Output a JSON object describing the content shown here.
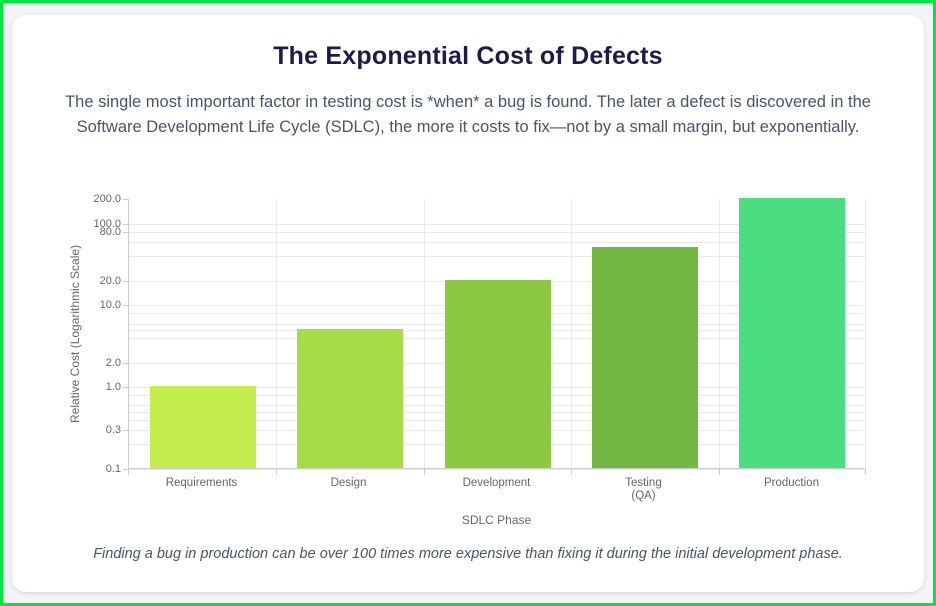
{
  "page": {
    "title": "The Exponential Cost of Defects",
    "subtitle": "The single most important factor in testing cost is *when* a bug is found. The later a defect is discovered in the Software Development Life Cycle (SDLC), the more it costs to fix—not by a small margin, but exponentially.",
    "caption": "Finding a bug in production can be over 100 times more expensive than fixing it during the initial development phase."
  },
  "chart_data": {
    "type": "bar",
    "title": "The Exponential Cost of Defects",
    "categories": [
      "Requirements",
      "Design",
      "Development",
      "Testing\n(QA)",
      "Production"
    ],
    "values": [
      1,
      5,
      20,
      50,
      200
    ],
    "bar_colors": [
      "#c3ee4d",
      "#a8dc46",
      "#8cc841",
      "#74b843",
      "#4ade80"
    ],
    "xlabel": "SDLC Phase",
    "ylabel": "Relative Cost (Logarithmic Scale)",
    "yscale": "log",
    "ylim": [
      0.1,
      200
    ],
    "yticks": [
      {
        "v": 200,
        "label": "200.0"
      },
      {
        "v": 100,
        "label": "100.0"
      },
      {
        "v": 80,
        "label": "80.0"
      },
      {
        "v": 60
      },
      {
        "v": 40
      },
      {
        "v": 20,
        "label": "20.0"
      },
      {
        "v": 10,
        "label": "10.0"
      },
      {
        "v": 8
      },
      {
        "v": 6
      },
      {
        "v": 5
      },
      {
        "v": 4
      },
      {
        "v": 2,
        "label": "2.0"
      },
      {
        "v": 1,
        "label": "1.0"
      },
      {
        "v": 0.8
      },
      {
        "v": 0.6
      },
      {
        "v": 0.5
      },
      {
        "v": 0.4
      },
      {
        "v": 0.3,
        "label": "0.3"
      },
      {
        "v": 0.2
      },
      {
        "v": 0.1,
        "label": "0.1"
      }
    ],
    "grid": true,
    "legend": false
  },
  "colors": {
    "page_border": "#00e640",
    "page_background": "#f3f4f6",
    "card_background": "#ffffff",
    "title_text": "#1e1b4b",
    "body_text": "#475569",
    "axis_text": "#666666",
    "gridline": "#e9e9e9",
    "axis_border": "#cccccc"
  }
}
